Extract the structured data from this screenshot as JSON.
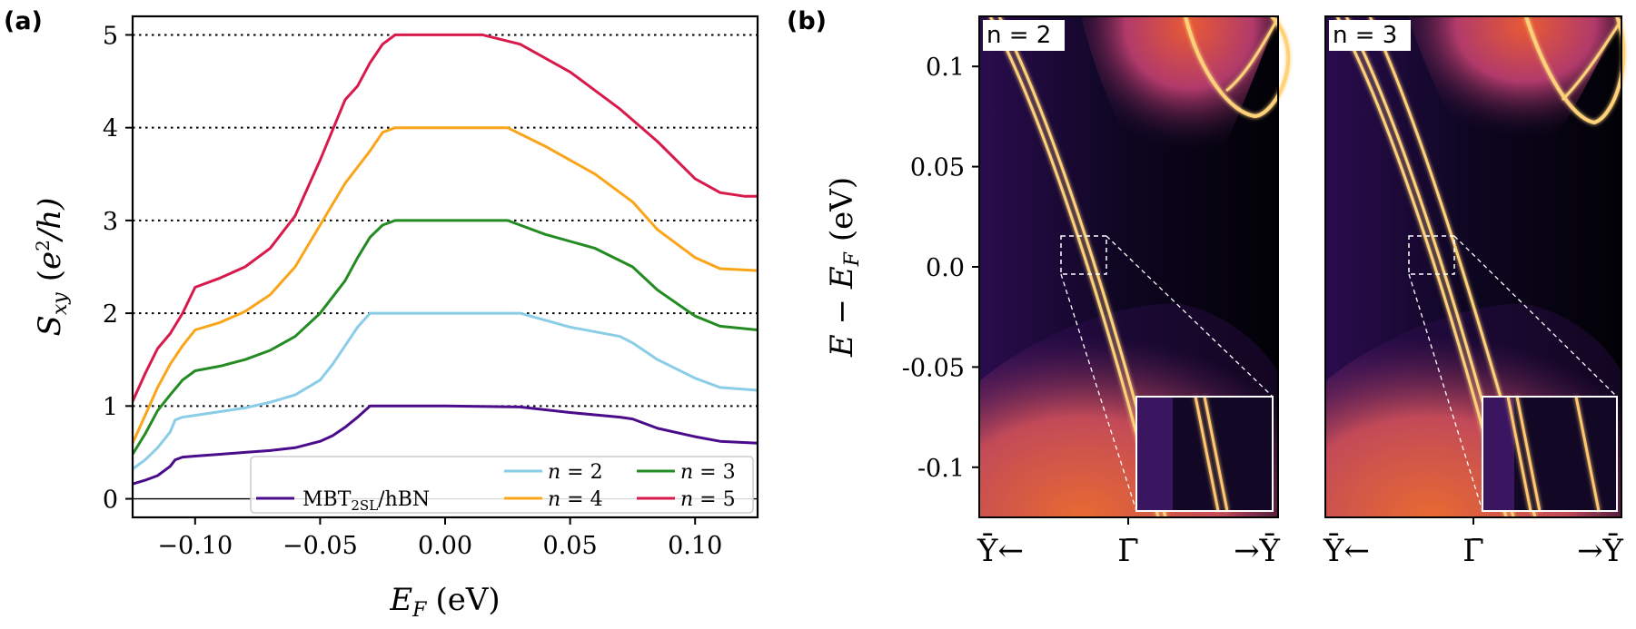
{
  "panel_labels": {
    "a": "(a)",
    "b": "(b)"
  },
  "chart_data": [
    {
      "type": "line",
      "title": "",
      "xlabel": "E_F (eV)",
      "xlabel_main": "E",
      "xlabel_sub": "F",
      "xlabel_unit": "(eV)",
      "ylabel": "S_xy (e^2/h)",
      "ylabel_main": "S",
      "ylabel_sub": "xy",
      "ylabel_unit_open": "(",
      "ylabel_unit_e": "e",
      "ylabel_unit_sup": "2",
      "ylabel_unit_rest": "/h)",
      "xlim": [
        -0.125,
        0.125
      ],
      "ylim": [
        -0.2,
        5.2
      ],
      "xticks": [
        -0.1,
        -0.05,
        0.0,
        0.05,
        0.1
      ],
      "xtick_labels": [
        "−0.10",
        "−0.05",
        "0.00",
        "0.05",
        "0.10"
      ],
      "yticks": [
        0,
        1,
        2,
        3,
        4,
        5
      ],
      "ytick_labels": [
        "0",
        "1",
        "2",
        "3",
        "4",
        "5"
      ],
      "reference_lines": [
        0,
        1,
        2,
        3,
        4,
        5
      ],
      "legend": {
        "placement": "bottom-right",
        "entries": [
          {
            "key": "n2",
            "label_main": "n",
            "label_eq": " = 2"
          },
          {
            "key": "n3",
            "label_main": "n",
            "label_eq": " = 3"
          },
          {
            "key": "mbt",
            "label_main": "MBT",
            "label_sub": "2SL",
            "label_rest": "/hBN"
          },
          {
            "key": "n4",
            "label_main": "n",
            "label_eq": " = 4"
          },
          {
            "key": "n5",
            "label_main": "n",
            "label_eq": " = 5"
          }
        ]
      },
      "series": [
        {
          "key": "mbt",
          "name": "MBT2SL/hBN",
          "color": "#4b0c8c",
          "x": [
            -0.125,
            -0.12,
            -0.115,
            -0.11,
            -0.108,
            -0.105,
            -0.1,
            -0.09,
            -0.08,
            -0.07,
            -0.06,
            -0.05,
            -0.045,
            -0.04,
            -0.035,
            -0.03,
            0.0,
            0.03,
            0.05,
            0.07,
            0.075,
            0.085,
            0.1,
            0.11,
            0.125
          ],
          "values": [
            0.16,
            0.2,
            0.25,
            0.35,
            0.42,
            0.45,
            0.46,
            0.48,
            0.5,
            0.52,
            0.55,
            0.62,
            0.68,
            0.77,
            0.88,
            1.0,
            1.0,
            0.99,
            0.93,
            0.88,
            0.86,
            0.76,
            0.67,
            0.62,
            0.6
          ]
        },
        {
          "key": "n2",
          "name": "n=2",
          "color": "#89cde6",
          "x": [
            -0.125,
            -0.12,
            -0.115,
            -0.11,
            -0.108,
            -0.105,
            -0.1,
            -0.09,
            -0.08,
            -0.07,
            -0.06,
            -0.05,
            -0.045,
            -0.04,
            -0.035,
            -0.03,
            0.03,
            0.05,
            0.07,
            0.075,
            0.085,
            0.1,
            0.11,
            0.125
          ],
          "values": [
            0.32,
            0.42,
            0.55,
            0.72,
            0.85,
            0.88,
            0.9,
            0.94,
            0.98,
            1.04,
            1.12,
            1.28,
            1.45,
            1.65,
            1.85,
            2.0,
            2.0,
            1.85,
            1.75,
            1.68,
            1.5,
            1.3,
            1.2,
            1.17
          ]
        },
        {
          "key": "n3",
          "name": "n=3",
          "color": "#238b21",
          "x": [
            -0.125,
            -0.12,
            -0.115,
            -0.11,
            -0.105,
            -0.1,
            -0.09,
            -0.08,
            -0.07,
            -0.06,
            -0.05,
            -0.04,
            -0.035,
            -0.03,
            -0.025,
            -0.02,
            0.025,
            0.04,
            0.06,
            0.075,
            0.085,
            0.1,
            0.11,
            0.125
          ],
          "values": [
            0.48,
            0.7,
            0.95,
            1.12,
            1.28,
            1.38,
            1.43,
            1.5,
            1.6,
            1.75,
            2.0,
            2.35,
            2.6,
            2.82,
            2.95,
            3.0,
            3.0,
            2.85,
            2.7,
            2.5,
            2.25,
            1.97,
            1.86,
            1.82
          ]
        },
        {
          "key": "n4",
          "name": "n=4",
          "color": "#faa519",
          "x": [
            -0.125,
            -0.12,
            -0.115,
            -0.11,
            -0.105,
            -0.1,
            -0.09,
            -0.08,
            -0.07,
            -0.06,
            -0.05,
            -0.04,
            -0.03,
            -0.025,
            -0.02,
            0.025,
            0.04,
            0.06,
            0.075,
            0.085,
            0.1,
            0.11,
            0.125
          ],
          "values": [
            0.6,
            0.9,
            1.2,
            1.45,
            1.65,
            1.82,
            1.9,
            2.02,
            2.2,
            2.5,
            2.95,
            3.4,
            3.75,
            3.95,
            4.0,
            4.0,
            3.8,
            3.5,
            3.2,
            2.9,
            2.6,
            2.48,
            2.46
          ]
        },
        {
          "key": "n5",
          "name": "n=5",
          "color": "#d71a4b",
          "x": [
            -0.125,
            -0.12,
            -0.115,
            -0.11,
            -0.105,
            -0.1,
            -0.09,
            -0.08,
            -0.07,
            -0.06,
            -0.05,
            -0.04,
            -0.035,
            -0.03,
            -0.025,
            -0.02,
            0.015,
            0.03,
            0.05,
            0.07,
            0.085,
            0.1,
            0.11,
            0.12,
            0.125
          ],
          "values": [
            1.05,
            1.35,
            1.62,
            1.78,
            2.0,
            2.28,
            2.38,
            2.5,
            2.7,
            3.05,
            3.65,
            4.3,
            4.45,
            4.7,
            4.9,
            5.0,
            5.0,
            4.9,
            4.6,
            4.2,
            3.85,
            3.45,
            3.3,
            3.26,
            3.26
          ]
        }
      ]
    },
    {
      "type": "heatmap",
      "description": "band spectral function",
      "ylabel": "E − E_F (eV)",
      "ylabel_main": "E − E",
      "ylabel_sub": "F",
      "ylabel_unit": "(eV)",
      "ylim": [
        -0.125,
        0.125
      ],
      "yticks": [
        0.1,
        0.05,
        0.0,
        -0.05,
        -0.1
      ],
      "ytick_labels": [
        "0.1",
        "0.05",
        "0.0",
        "-0.05",
        "-0.1"
      ],
      "xtick_labels": [
        "Ȳ←",
        "Γ̄",
        "→Ȳ"
      ],
      "panels": [
        {
          "label": "n = 2",
          "bands": 2
        },
        {
          "label": "n = 3",
          "bands": 3
        }
      ]
    }
  ]
}
